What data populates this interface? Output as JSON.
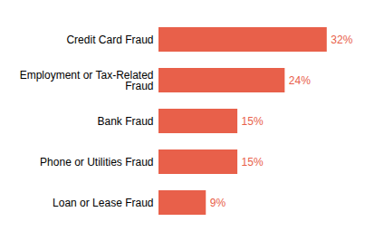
{
  "chart_data": {
    "type": "bar",
    "orientation": "horizontal",
    "categories": [
      "Loan or Lease Fraud",
      "Phone or Utilities Fraud",
      "Bank Fraud",
      "Employment or Tax-Related\nFraud",
      "Credit Card Fraud"
    ],
    "values": [
      9,
      15,
      15,
      24,
      32
    ],
    "value_labels": [
      "9%",
      "15%",
      "15%",
      "24%",
      "32%"
    ],
    "color": "#E8604A",
    "xlim": [
      0,
      36
    ],
    "data_labels": true,
    "tick_labels": "y"
  }
}
